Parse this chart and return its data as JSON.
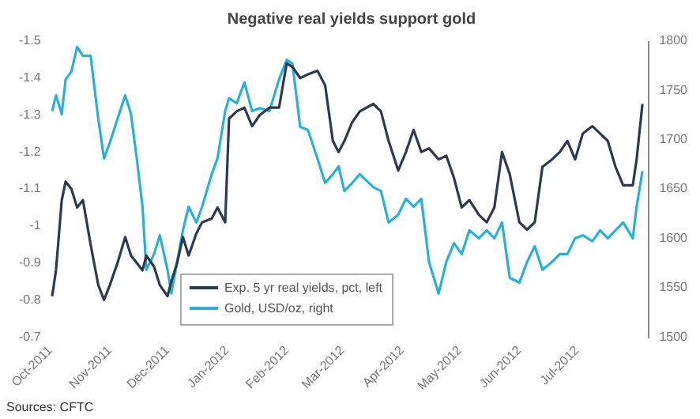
{
  "chart_data": {
    "type": "line",
    "title": "Negative real yields support gold",
    "annotations": [
      "Sources: CFTC"
    ],
    "x": [
      "2011-10-02",
      "2011-10-04",
      "2011-10-07",
      "2011-10-09",
      "2011-10-12",
      "2011-10-15",
      "2011-10-18",
      "2011-10-22",
      "2011-10-26",
      "2011-10-29",
      "2011-11-01",
      "2011-11-05",
      "2011-11-09",
      "2011-11-12",
      "2011-11-15",
      "2011-11-18",
      "2011-11-20",
      "2011-11-24",
      "2011-11-27",
      "2011-12-01",
      "2011-12-03",
      "2011-12-06",
      "2011-12-09",
      "2011-12-12",
      "2011-12-16",
      "2011-12-19",
      "2011-12-24",
      "2011-12-27",
      "2011-12-31",
      "2012-01-02",
      "2012-01-06",
      "2012-01-10",
      "2012-01-14",
      "2012-01-18",
      "2012-01-23",
      "2012-01-28",
      "2012-02-01",
      "2012-02-04",
      "2012-02-08",
      "2012-02-12",
      "2012-02-17",
      "2012-02-21",
      "2012-02-25",
      "2012-02-28",
      "2012-03-02",
      "2012-03-06",
      "2012-03-10",
      "2012-03-17",
      "2012-03-21",
      "2012-03-25",
      "2012-03-30",
      "2012-04-03",
      "2012-04-07",
      "2012-04-11",
      "2012-04-15",
      "2012-04-20",
      "2012-04-24",
      "2012-04-28",
      "2012-05-02",
      "2012-05-06",
      "2012-05-11",
      "2012-05-15",
      "2012-05-19",
      "2012-05-23",
      "2012-05-27",
      "2012-06-01",
      "2012-06-05",
      "2012-06-09",
      "2012-06-13",
      "2012-06-18",
      "2012-06-22",
      "2012-06-26",
      "2012-06-30",
      "2012-07-04",
      "2012-07-09",
      "2012-07-13",
      "2012-07-17",
      "2012-07-21",
      "2012-07-25",
      "2012-07-30",
      "2012-08-01",
      "2012-08-04"
    ],
    "series": [
      {
        "name": "Exp. 5 yr real yields, pct, left",
        "color": "#2b3a4f",
        "values": [
          -0.81,
          -0.88,
          -1.07,
          -1.12,
          -1.1,
          -1.05,
          -1.07,
          -0.95,
          -0.84,
          -0.8,
          -0.84,
          -0.9,
          -0.97,
          -0.92,
          -0.9,
          -0.88,
          -0.92,
          -0.89,
          -0.84,
          -0.81,
          -0.85,
          -0.9,
          -0.97,
          -0.92,
          -0.98,
          -1.01,
          -1.02,
          -1.05,
          -1.01,
          -1.29,
          -1.31,
          -1.32,
          -1.27,
          -1.3,
          -1.32,
          -1.32,
          -1.44,
          -1.43,
          -1.4,
          -1.41,
          -1.42,
          -1.38,
          -1.23,
          -1.2,
          -1.23,
          -1.28,
          -1.31,
          -1.33,
          -1.31,
          -1.23,
          -1.15,
          -1.2,
          -1.26,
          -1.2,
          -1.21,
          -1.18,
          -1.19,
          -1.13,
          -1.05,
          -1.07,
          -1.03,
          -1.01,
          -1.05,
          -1.2,
          -1.14,
          -1.01,
          -0.99,
          -1.01,
          -1.16,
          -1.18,
          -1.2,
          -1.23,
          -1.18,
          -1.25,
          -1.27,
          -1.25,
          -1.23,
          -1.16,
          -1.11,
          -1.11,
          -1.18,
          -1.33
        ]
      },
      {
        "name": "Gold, USD/oz, right",
        "color": "#2ab0d8",
        "axis": "y2",
        "values": [
          1729,
          1745,
          1726,
          1761,
          1769,
          1794,
          1785,
          1785,
          1721,
          1681,
          1697,
          1721,
          1745,
          1726,
          1681,
          1632,
          1568,
          1584,
          1603,
          1568,
          1544,
          1576,
          1608,
          1632,
          1616,
          1632,
          1665,
          1681,
          1729,
          1742,
          1737,
          1758,
          1729,
          1732,
          1729,
          1761,
          1781,
          1777,
          1713,
          1710,
          1681,
          1656,
          1665,
          1673,
          1648,
          1656,
          1665,
          1652,
          1648,
          1616,
          1624,
          1640,
          1632,
          1640,
          1576,
          1544,
          1576,
          1595,
          1584,
          1608,
          1600,
          1608,
          1600,
          1616,
          1560,
          1555,
          1576,
          1592,
          1568,
          1576,
          1584,
          1584,
          1600,
          1603,
          1597,
          1608,
          1600,
          1608,
          1616,
          1600,
          1632,
          1668
        ]
      }
    ],
    "xlim": [
      "2011-10-01",
      "2012-08-07"
    ],
    "xticks": [
      {
        "value": "2011-10-01",
        "label": "Oct-2011"
      },
      {
        "value": "2011-11-01",
        "label": "Nov-2011"
      },
      {
        "value": "2011-12-01",
        "label": "Dec-2011"
      },
      {
        "value": "2012-01-01",
        "label": "Jan-2012"
      },
      {
        "value": "2012-02-01",
        "label": "Feb-2012"
      },
      {
        "value": "2012-03-01",
        "label": "Mar-2012"
      },
      {
        "value": "2012-04-01",
        "label": "Apr-2012"
      },
      {
        "value": "2012-05-01",
        "label": "May-2012"
      },
      {
        "value": "2012-06-01",
        "label": "Jun-2012"
      },
      {
        "value": "2012-07-01",
        "label": "Jul-2012"
      }
    ],
    "ylim": [
      -0.7,
      -1.5
    ],
    "yticks": [
      -1.5,
      -1.4,
      -1.3,
      -1.2,
      -1.1,
      -1.0,
      -0.9,
      -0.8,
      -0.7
    ],
    "y2lim": [
      1500,
      1800
    ],
    "y2ticks": [
      1500,
      1550,
      1600,
      1650,
      1700,
      1750,
      1800
    ],
    "grid": false,
    "legend": "bottom",
    "marker": "none",
    "line_style": "solid"
  }
}
